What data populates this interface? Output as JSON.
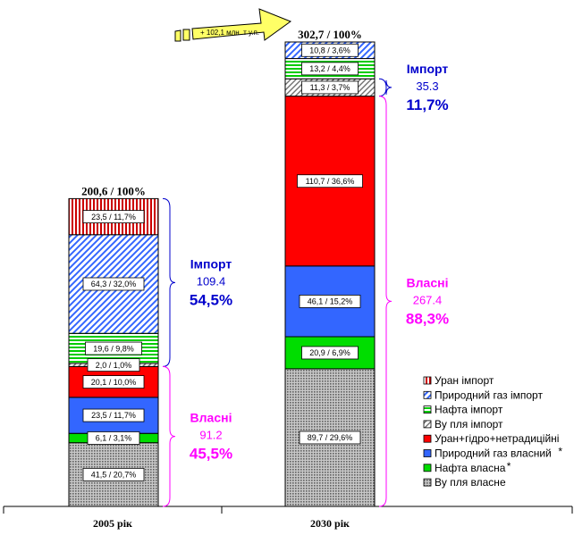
{
  "chart_data": {
    "type": "bar",
    "stacked": true,
    "categories": [
      "2005 рік",
      "2030 рік"
    ],
    "totals": [
      "200,6 / 100%",
      "302,7 / 100%"
    ],
    "change_label": "+ 102,1 млн. т у.п.",
    "ylim": [
      0,
      302.7
    ],
    "grid": false,
    "legend_position": "bottom-right",
    "series": [
      {
        "name": "Ву пля власне",
        "values": [
          41.5,
          89.7
        ],
        "labels": [
          "41,5 / 20,7%",
          "89,7 / 29,6%"
        ],
        "color": "#808080",
        "pattern": "dots",
        "legend_marker": "dots"
      },
      {
        "name": "Нафта власна",
        "legend_suffix": "*",
        "values": [
          6.1,
          20.9
        ],
        "labels": [
          "6,1 / 3,1%",
          "20,9 / 6,9%"
        ],
        "color": "#00dd00",
        "pattern": "solid",
        "legend_marker": "solid"
      },
      {
        "name": "Природний газ власний",
        "legend_suffix": "*",
        "values": [
          23.5,
          46.1
        ],
        "labels": [
          "23,5 / 11,7%",
          "46,1 / 15,2%"
        ],
        "color": "#3366ff",
        "pattern": "solid",
        "legend_marker": "solid"
      },
      {
        "name": "Уран+гідро+нетрадиційні",
        "values": [
          20.1,
          110.7
        ],
        "labels": [
          "20,1 / 10,0%",
          "110,7 / 36,6%"
        ],
        "color": "#ff0000",
        "pattern": "solid",
        "legend_marker": "solid"
      },
      {
        "name": "Ву пля імпорт",
        "values": [
          2.0,
          11.3
        ],
        "labels": [
          "2,0 / 1,0%",
          "11,3 / 3,7%"
        ],
        "color": "#808080",
        "pattern": "diag",
        "legend_marker": "diag"
      },
      {
        "name": "Нафта імпорт",
        "values": [
          19.6,
          13.2
        ],
        "labels": [
          "19,6 / 9,8%",
          "13,2 / 4,4%"
        ],
        "color": "#00dd00",
        "pattern": "hlines",
        "legend_marker": "hlines"
      },
      {
        "name": "Природний газ імпорт",
        "values": [
          64.3,
          10.8
        ],
        "labels": [
          "64,3 / 32,0%",
          "10,8 / 3,6%"
        ],
        "color": "#3366ff",
        "pattern": "diag",
        "legend_marker": "diag"
      },
      {
        "name": "Уран імпорт",
        "values": [
          23.5,
          0
        ],
        "labels": [
          "23,5 / 11,7%",
          ""
        ],
        "color": "#cc0000",
        "pattern": "vlines",
        "legend_marker": "vlines"
      }
    ],
    "legend_order": [
      7,
      6,
      5,
      4,
      3,
      2,
      1,
      0
    ],
    "groups": [
      {
        "bar": 0,
        "name": "Імпорт",
        "value": "109.4",
        "percent": "54,5%",
        "color": "#0000cc",
        "from": 4,
        "to": 7
      },
      {
        "bar": 0,
        "name": "Власні",
        "value": "91.2",
        "percent": "45,5%",
        "color": "#ff00ff",
        "from": 0,
        "to": 3
      },
      {
        "bar": 1,
        "name": "Імпорт",
        "value": "35.3",
        "percent": "11,7%",
        "color": "#0000cc",
        "from": 4,
        "to": 7
      },
      {
        "bar": 1,
        "name": "Власні",
        "value": "267.4",
        "percent": "88,3%",
        "color": "#ff00ff",
        "from": 0,
        "to": 3
      }
    ]
  }
}
